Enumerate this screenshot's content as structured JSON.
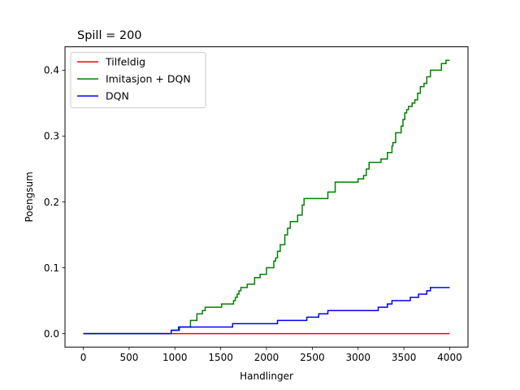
{
  "chart_data": {
    "type": "line",
    "title": "Spill = 200",
    "xlabel": "Handlinger",
    "ylabel": "Poengsum",
    "xlim": [
      -200,
      4200
    ],
    "ylim": [
      -0.0205,
      0.4355
    ],
    "xticks": [
      0,
      500,
      1000,
      1500,
      2000,
      2500,
      3000,
      3500,
      4000
    ],
    "yticks": [
      0.0,
      0.1,
      0.2,
      0.3,
      0.4
    ],
    "xtick_labels": [
      "0",
      "500",
      "1000",
      "1500",
      "2000",
      "2500",
      "3000",
      "3500",
      "4000"
    ],
    "ytick_labels": [
      "0.0",
      "0.1",
      "0.2",
      "0.3",
      "0.4"
    ],
    "grid": false,
    "legend_position": "top-left",
    "series": [
      {
        "name": "Tilfeldig",
        "color": "#ff0000",
        "step": true,
        "points": [
          [
            0,
            0.0
          ],
          [
            4000,
            0.0
          ]
        ]
      },
      {
        "name": "Imitasjon + DQN",
        "color": "#008000",
        "step": true,
        "points": [
          [
            0,
            0.0
          ],
          [
            950,
            0.0
          ],
          [
            960,
            0.005
          ],
          [
            1040,
            0.005
          ],
          [
            1050,
            0.01
          ],
          [
            1160,
            0.01
          ],
          [
            1170,
            0.02
          ],
          [
            1230,
            0.02
          ],
          [
            1240,
            0.03
          ],
          [
            1290,
            0.03
          ],
          [
            1300,
            0.035
          ],
          [
            1320,
            0.035
          ],
          [
            1330,
            0.04
          ],
          [
            1500,
            0.04
          ],
          [
            1510,
            0.045
          ],
          [
            1630,
            0.045
          ],
          [
            1640,
            0.05
          ],
          [
            1660,
            0.055
          ],
          [
            1680,
            0.06
          ],
          [
            1700,
            0.065
          ],
          [
            1720,
            0.07
          ],
          [
            1780,
            0.07
          ],
          [
            1790,
            0.075
          ],
          [
            1860,
            0.075
          ],
          [
            1870,
            0.085
          ],
          [
            1920,
            0.085
          ],
          [
            1930,
            0.09
          ],
          [
            1990,
            0.09
          ],
          [
            2000,
            0.1
          ],
          [
            2070,
            0.1
          ],
          [
            2080,
            0.11
          ],
          [
            2100,
            0.115
          ],
          [
            2120,
            0.125
          ],
          [
            2150,
            0.135
          ],
          [
            2190,
            0.135
          ],
          [
            2200,
            0.15
          ],
          [
            2230,
            0.16
          ],
          [
            2260,
            0.17
          ],
          [
            2330,
            0.17
          ],
          [
            2340,
            0.18
          ],
          [
            2380,
            0.18
          ],
          [
            2390,
            0.195
          ],
          [
            2410,
            0.205
          ],
          [
            2660,
            0.205
          ],
          [
            2670,
            0.215
          ],
          [
            2740,
            0.215
          ],
          [
            2750,
            0.23
          ],
          [
            2990,
            0.23
          ],
          [
            3000,
            0.235
          ],
          [
            3050,
            0.235
          ],
          [
            3060,
            0.24
          ],
          [
            3080,
            0.24
          ],
          [
            3090,
            0.25
          ],
          [
            3110,
            0.25
          ],
          [
            3120,
            0.26
          ],
          [
            3240,
            0.26
          ],
          [
            3250,
            0.265
          ],
          [
            3310,
            0.265
          ],
          [
            3320,
            0.275
          ],
          [
            3370,
            0.285
          ],
          [
            3380,
            0.29
          ],
          [
            3410,
            0.305
          ],
          [
            3460,
            0.305
          ],
          [
            3470,
            0.315
          ],
          [
            3490,
            0.325
          ],
          [
            3510,
            0.335
          ],
          [
            3530,
            0.34
          ],
          [
            3550,
            0.345
          ],
          [
            3590,
            0.35
          ],
          [
            3620,
            0.355
          ],
          [
            3650,
            0.365
          ],
          [
            3680,
            0.375
          ],
          [
            3720,
            0.38
          ],
          [
            3750,
            0.39
          ],
          [
            3780,
            0.39
          ],
          [
            3790,
            0.4
          ],
          [
            3900,
            0.4
          ],
          [
            3910,
            0.41
          ],
          [
            3960,
            0.415
          ],
          [
            4000,
            0.415
          ]
        ]
      },
      {
        "name": "DQN",
        "color": "#0000ff",
        "step": true,
        "points": [
          [
            0,
            0.0
          ],
          [
            950,
            0.0
          ],
          [
            960,
            0.005
          ],
          [
            1030,
            0.005
          ],
          [
            1040,
            0.01
          ],
          [
            1130,
            0.01
          ],
          [
            1140,
            0.01
          ],
          [
            1620,
            0.01
          ],
          [
            1630,
            0.015
          ],
          [
            2110,
            0.015
          ],
          [
            2120,
            0.02
          ],
          [
            2430,
            0.02
          ],
          [
            2440,
            0.025
          ],
          [
            2560,
            0.025
          ],
          [
            2570,
            0.03
          ],
          [
            2660,
            0.03
          ],
          [
            2670,
            0.035
          ],
          [
            3210,
            0.035
          ],
          [
            3220,
            0.04
          ],
          [
            3310,
            0.04
          ],
          [
            3320,
            0.045
          ],
          [
            3360,
            0.045
          ],
          [
            3370,
            0.05
          ],
          [
            3560,
            0.05
          ],
          [
            3570,
            0.055
          ],
          [
            3650,
            0.055
          ],
          [
            3660,
            0.06
          ],
          [
            3740,
            0.06
          ],
          [
            3750,
            0.065
          ],
          [
            3780,
            0.065
          ],
          [
            3790,
            0.07
          ],
          [
            4000,
            0.07
          ]
        ]
      }
    ]
  }
}
